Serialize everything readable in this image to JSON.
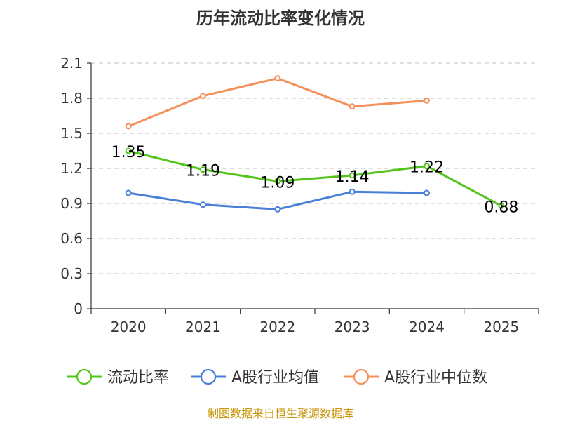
{
  "chart_data": {
    "type": "line",
    "title": "历年流动比率变化情况",
    "categories": [
      "2020",
      "2021",
      "2022",
      "2023",
      "2024",
      "2025"
    ],
    "ylim": [
      0,
      2.1
    ],
    "yticks": [
      "0",
      "0.3",
      "0.6",
      "0.9",
      "1.2",
      "1.5",
      "1.8",
      "2.1"
    ],
    "grid": true,
    "legend_position": "bottom",
    "series": [
      {
        "name": "流动比率",
        "color": "#52c41a",
        "values": [
          1.35,
          1.19,
          1.09,
          1.14,
          1.22,
          0.88
        ],
        "labels": [
          "1.35",
          "1.19",
          "1.09",
          "1.14",
          "1.22",
          "0.88"
        ]
      },
      {
        "name": "A股行业均值",
        "color": "#4a7fd8",
        "values": [
          0.99,
          0.89,
          0.85,
          1.0,
          0.99,
          null
        ]
      },
      {
        "name": "A股行业中位数",
        "color": "#f5905a",
        "values": [
          1.56,
          1.82,
          1.97,
          1.73,
          1.78,
          null
        ]
      }
    ],
    "source": "制图数据来自恒生聚源数据库"
  }
}
